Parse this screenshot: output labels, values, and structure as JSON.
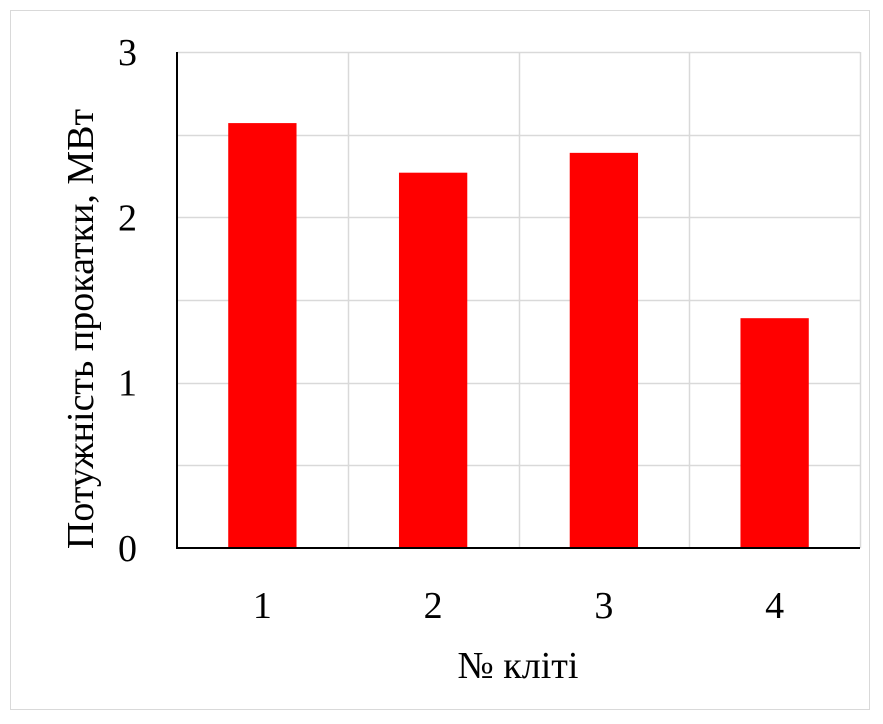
{
  "chart_data": {
    "type": "bar",
    "categories": [
      "1",
      "2",
      "3",
      "4"
    ],
    "values": [
      2.57,
      2.27,
      2.39,
      1.39
    ],
    "title": "",
    "xlabel": "№ кліті",
    "ylabel": "Потужність прокатки, МВт",
    "ylim": [
      0,
      3
    ],
    "yticks": [
      "0",
      "1",
      "2",
      "3"
    ],
    "minor_step": 0.5,
    "grid": true,
    "legend": "none",
    "colors": {
      "bar": "#ff0000",
      "grid": "#d9d9d9",
      "axis": "#000000"
    }
  }
}
